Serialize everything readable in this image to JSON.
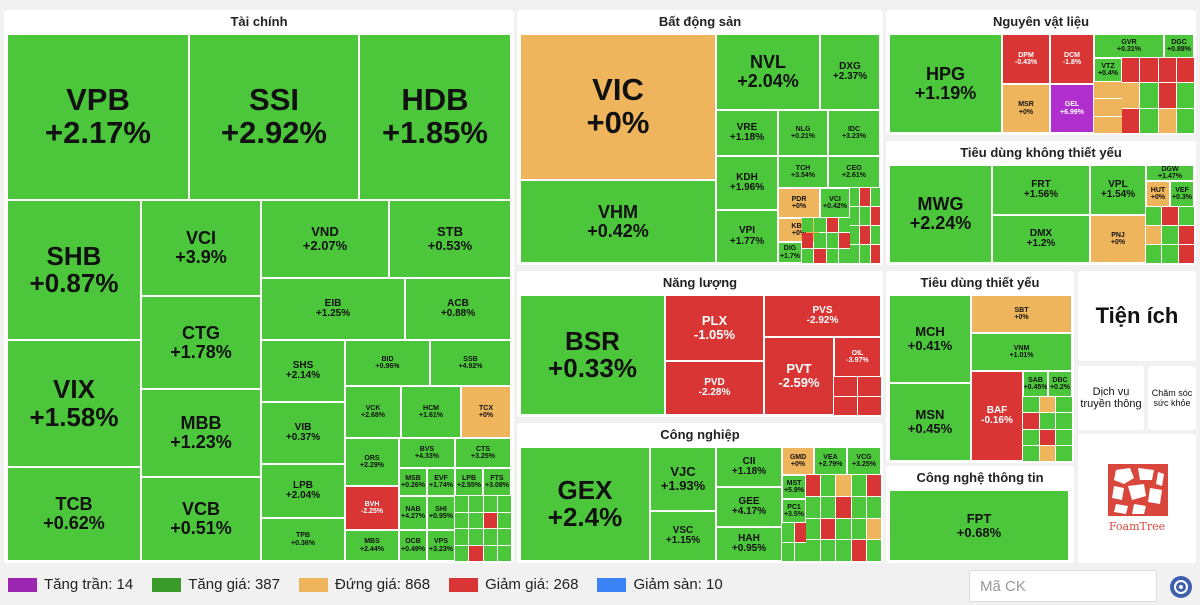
{
  "sectors": {
    "tai_chinh": {
      "title": "Tài chính",
      "stocks": [
        {
          "s": "VPB",
          "p": "+2.17%"
        },
        {
          "s": "SSI",
          "p": "+2.92%"
        },
        {
          "s": "HDB",
          "p": "+1.85%"
        },
        {
          "s": "SHB",
          "p": "+0.87%"
        },
        {
          "s": "VIX",
          "p": "+1.58%"
        },
        {
          "s": "TCB",
          "p": "+0.62%"
        },
        {
          "s": "VCI",
          "p": "+3.9%"
        },
        {
          "s": "CTG",
          "p": "+1.78%"
        },
        {
          "s": "MBB",
          "p": "+1.23%"
        },
        {
          "s": "VCB",
          "p": "+0.51%"
        },
        {
          "s": "VND",
          "p": "+2.07%"
        },
        {
          "s": "STB",
          "p": "+0.53%"
        },
        {
          "s": "EIB",
          "p": "+1.25%"
        },
        {
          "s": "ACB",
          "p": "+0.88%"
        },
        {
          "s": "SHS",
          "p": "+2.14%"
        },
        {
          "s": "VIB",
          "p": "+0.37%"
        },
        {
          "s": "LPB",
          "p": "+2.04%"
        },
        {
          "s": "TPB",
          "p": "+0.36%"
        },
        {
          "s": "BID",
          "p": "+0.96%"
        },
        {
          "s": "SSB",
          "p": "+4.92%"
        },
        {
          "s": "VCK",
          "p": "+2.68%"
        },
        {
          "s": "HCM",
          "p": "+1.61%"
        },
        {
          "s": "TCX",
          "p": "+0%"
        },
        {
          "s": "ORS",
          "p": "+2.29%"
        },
        {
          "s": "BVH",
          "p": "-2.25%"
        },
        {
          "s": "MBS",
          "p": "+2.44%"
        },
        {
          "s": "BVS",
          "p": "+4.33%"
        },
        {
          "s": "CTS",
          "p": "+3.25%"
        },
        {
          "s": "MSB",
          "p": "+0.26%"
        },
        {
          "s": "EVF",
          "p": "+1.74%"
        },
        {
          "s": "LPB",
          "p": "+2.55%"
        },
        {
          "s": "FTS",
          "p": "+3.08%"
        },
        {
          "s": "NAB",
          "p": "+4.27%"
        },
        {
          "s": "SHI",
          "p": "+0.95%"
        },
        {
          "s": "OCB",
          "p": "+0.49%"
        },
        {
          "s": "VPS",
          "p": "+3.23%"
        }
      ]
    },
    "bat_dong_san": {
      "title": "Bất động sản",
      "stocks": [
        {
          "s": "VIC",
          "p": "+0%"
        },
        {
          "s": "VHM",
          "p": "+0.42%"
        },
        {
          "s": "NVL",
          "p": "+2.04%"
        },
        {
          "s": "DXG",
          "p": "+2.37%"
        },
        {
          "s": "VRE",
          "p": "+1.18%"
        },
        {
          "s": "NLG",
          "p": "+0.21%"
        },
        {
          "s": "IDC",
          "p": "+3.23%"
        },
        {
          "s": "TCH",
          "p": "+3.54%"
        },
        {
          "s": "CEO",
          "p": "+2.61%"
        },
        {
          "s": "KDH",
          "p": "+1.96%"
        },
        {
          "s": "PDR",
          "p": "+0%"
        },
        {
          "s": "VCI",
          "p": "+0.42%"
        },
        {
          "s": "KBC",
          "p": "+0%"
        },
        {
          "s": "VPI",
          "p": "+1.77%"
        },
        {
          "s": "DIG",
          "p": "+1.7%"
        }
      ]
    },
    "nang_luong": {
      "title": "Năng lượng",
      "stocks": [
        {
          "s": "BSR",
          "p": "+0.33%"
        },
        {
          "s": "PLX",
          "p": "-1.05%"
        },
        {
          "s": "PVS",
          "p": "-2.92%"
        },
        {
          "s": "PVD",
          "p": "-2.28%"
        },
        {
          "s": "PVT",
          "p": "-2.59%"
        },
        {
          "s": "OIL",
          "p": "-3.97%"
        }
      ]
    },
    "cong_nghiep": {
      "title": "Công nghiệp",
      "stocks": [
        {
          "s": "GEX",
          "p": "+2.4%"
        },
        {
          "s": "VJC",
          "p": "+1.93%"
        },
        {
          "s": "VSC",
          "p": "+1.15%"
        },
        {
          "s": "CII",
          "p": "+1.18%"
        },
        {
          "s": "GEE",
          "p": "+4.17%"
        },
        {
          "s": "HAH",
          "p": "+0.95%"
        },
        {
          "s": "GMD",
          "p": "+0%"
        },
        {
          "s": "VEA",
          "p": "+2.79%"
        },
        {
          "s": "VCG",
          "p": "+3.25%"
        },
        {
          "s": "MST",
          "p": "+5.9%"
        },
        {
          "s": "PC1",
          "p": "+3.5%"
        }
      ]
    },
    "nguyen_vat_lieu": {
      "title": "Nguyên vật liệu",
      "stocks": [
        {
          "s": "HPG",
          "p": "+1.19%"
        },
        {
          "s": "DPM",
          "p": "-0.43%"
        },
        {
          "s": "DCM",
          "p": "-1.8%"
        },
        {
          "s": "MSR",
          "p": "+0%"
        },
        {
          "s": "GEL",
          "p": "+6.99%"
        },
        {
          "s": "GVR",
          "p": "+0.31%"
        },
        {
          "s": "DGC",
          "p": "+0.88%"
        },
        {
          "s": "VTZ",
          "p": "+0.4%"
        }
      ]
    },
    "tieu_dung_khong_thiet_yeu": {
      "title": "Tiêu dùng không thiết yếu",
      "stocks": [
        {
          "s": "MWG",
          "p": "+2.24%"
        },
        {
          "s": "FRT",
          "p": "+1.56%"
        },
        {
          "s": "DMX",
          "p": "+1.2%"
        },
        {
          "s": "VPL",
          "p": "+1.54%"
        },
        {
          "s": "PNJ",
          "p": "+0%"
        },
        {
          "s": "HUT",
          "p": "+0%"
        },
        {
          "s": "DGW",
          "p": "+1.47%"
        },
        {
          "s": "VEF",
          "p": "+0.3%"
        }
      ]
    },
    "tieu_dung_thiet_yeu": {
      "title": "Tiêu dùng thiết yếu",
      "stocks": [
        {
          "s": "MCH",
          "p": "+0.41%"
        },
        {
          "s": "MSN",
          "p": "+0.45%"
        },
        {
          "s": "SBT",
          "p": "+0%"
        },
        {
          "s": "VNM",
          "p": "+1.01%"
        },
        {
          "s": "BAF",
          "p": "-0.16%"
        },
        {
          "s": "SAB",
          "p": "+0.45%"
        },
        {
          "s": "DBC",
          "p": "+0.2%"
        }
      ]
    },
    "cong_nghe_thong_tin": {
      "title": "Công nghệ thông tin",
      "stocks": [
        {
          "s": "FPT",
          "p": "+0.68%"
        }
      ]
    }
  },
  "utilities": {
    "title": "Tiện ích",
    "items": [
      "Dịch vụ truyền thông",
      "Chăm sóc sức khỏe"
    ]
  },
  "logo_text": "FoamTree",
  "legend": [
    {
      "label": "Tăng trần: 14",
      "color": "#9b27b0"
    },
    {
      "label": "Tăng giá: 387",
      "color": "#3a9a2a"
    },
    {
      "label": "Đứng giá: 868",
      "color": "#efb55c"
    },
    {
      "label": "Giảm giá: 268",
      "color": "#d93535"
    },
    {
      "label": "Giảm sàn: 10",
      "color": "#3b82f6"
    }
  ],
  "search": {
    "placeholder": "Mã CK"
  },
  "colors": {
    "up": "#4cc63a",
    "down": "#d93535",
    "flat": "#efb55c",
    "ceiling": "#b22fcf",
    "floor": "#3b82f6"
  }
}
